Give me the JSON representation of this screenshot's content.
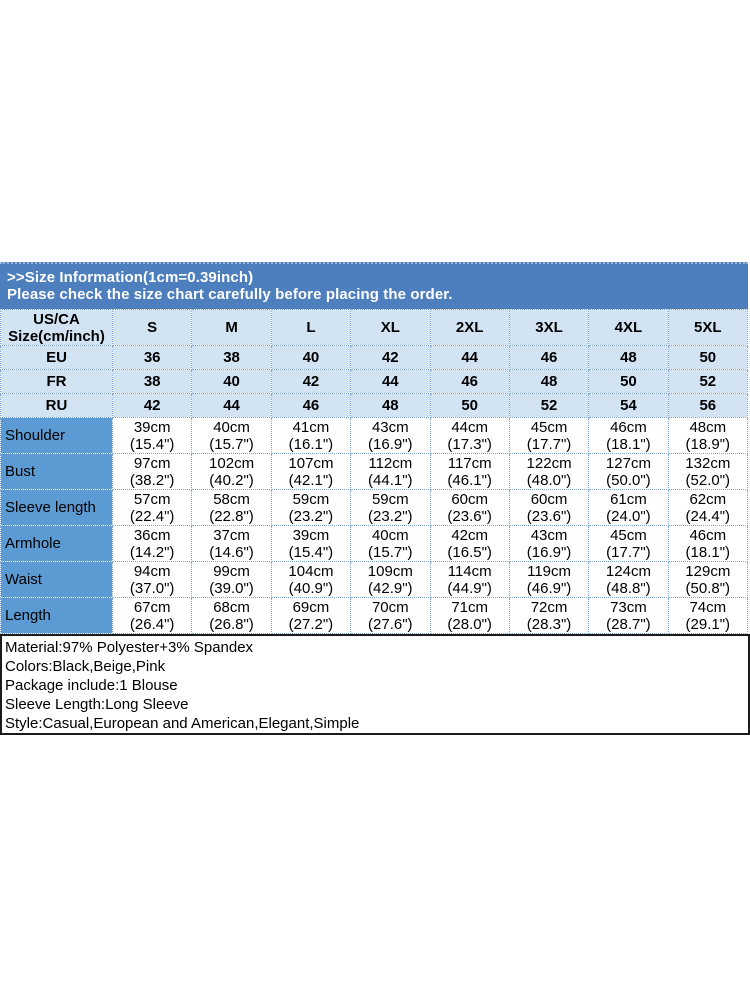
{
  "banner": {
    "line1": ">>Size Information(1cm=0.39inch)",
    "line2": "Please check the size chart carefully before placing the order."
  },
  "table": {
    "corner_lines": [
      "US/CA",
      "Size(cm/inch)"
    ],
    "size_columns": [
      "S",
      "M",
      "L",
      "XL",
      "2XL",
      "3XL",
      "4XL",
      "5XL"
    ],
    "region_rows": [
      {
        "label": "EU",
        "values": [
          "36",
          "38",
          "40",
          "42",
          "44",
          "46",
          "48",
          "50"
        ]
      },
      {
        "label": "FR",
        "values": [
          "38",
          "40",
          "42",
          "44",
          "46",
          "48",
          "50",
          "52"
        ]
      },
      {
        "label": "RU",
        "values": [
          "42",
          "44",
          "46",
          "48",
          "50",
          "52",
          "54",
          "56"
        ]
      }
    ],
    "measurement_rows": [
      {
        "label": "Shoulder",
        "cm": [
          "39cm",
          "40cm",
          "41cm",
          "43cm",
          "44cm",
          "45cm",
          "46cm",
          "48cm"
        ],
        "inch": [
          "(15.4\")",
          "(15.7\")",
          "(16.1\")",
          "(16.9\")",
          "(17.3\")",
          "(17.7\")",
          "(18.1\")",
          "(18.9\")"
        ]
      },
      {
        "label": "Bust",
        "cm": [
          "97cm",
          "102cm",
          "107cm",
          "112cm",
          "117cm",
          "122cm",
          "127cm",
          "132cm"
        ],
        "inch": [
          "(38.2\")",
          "(40.2\")",
          "(42.1\")",
          "(44.1\")",
          "(46.1\")",
          "(48.0\")",
          "(50.0\")",
          "(52.0\")"
        ]
      },
      {
        "label": "Sleeve length",
        "cm": [
          "57cm",
          "58cm",
          "59cm",
          "59cm",
          "60cm",
          "60cm",
          "61cm",
          "62cm"
        ],
        "inch": [
          "(22.4\")",
          "(22.8\")",
          "(23.2\")",
          "(23.2\")",
          "(23.6\")",
          "(23.6\")",
          "(24.0\")",
          "(24.4\")"
        ]
      },
      {
        "label": "Armhole",
        "cm": [
          "36cm",
          "37cm",
          "39cm",
          "40cm",
          "42cm",
          "43cm",
          "45cm",
          "46cm"
        ],
        "inch": [
          "(14.2\")",
          "(14.6\")",
          "(15.4\")",
          "(15.7\")",
          "(16.5\")",
          "(16.9\")",
          "(17.7\")",
          "(18.1\")"
        ]
      },
      {
        "label": "Waist",
        "cm": [
          "94cm",
          "99cm",
          "104cm",
          "109cm",
          "114cm",
          "119cm",
          "124cm",
          "129cm"
        ],
        "inch": [
          "(37.0\")",
          "(39.0\")",
          "(40.9\")",
          "(42.9\")",
          "(44.9\")",
          "(46.9\")",
          "(48.8\")",
          "(50.8\")"
        ]
      },
      {
        "label": "Length",
        "cm": [
          "67cm",
          "68cm",
          "69cm",
          "70cm",
          "71cm",
          "72cm",
          "73cm",
          "74cm"
        ],
        "inch": [
          "(26.4\")",
          "(26.8\")",
          "(27.2\")",
          "(27.6\")",
          "(28.0\")",
          "(28.3\")",
          "(28.7\")",
          "(29.1\")"
        ]
      }
    ]
  },
  "details": {
    "lines": [
      "Material:97% Polyester+3% Spandex",
      "Colors:Black,Beige,Pink",
      "Package include:1 Blouse",
      "Sleeve Length:Long Sleeve",
      "Style:Casual,European and American,Elegant,Simple"
    ]
  },
  "colors": {
    "banner_bg": "#4d7ebd",
    "banner_text": "#ffffff",
    "light_cell_bg": "#d2e4f4",
    "measurement_label_bg": "#5b9ad2",
    "cell_border_dotted": "#7fa6d4",
    "details_border": "#1b1b1b",
    "table_text": "#000000"
  }
}
